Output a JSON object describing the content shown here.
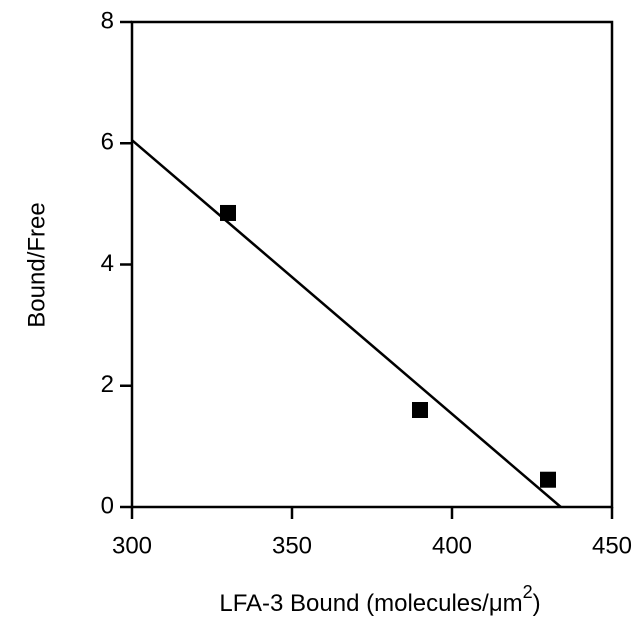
{
  "chart_data": {
    "type": "scatter",
    "x_label": "LFA-3 Bound (molecules/μm",
    "x_label_sup": "2",
    "x_label_end": ")",
    "y_label": "Bound/Free",
    "x": [
      330,
      390,
      430
    ],
    "values": [
      4.85,
      1.6,
      0.45
    ],
    "color": "#000000",
    "fit_line": {
      "x": [
        300,
        434
      ],
      "values": [
        6.05,
        0
      ]
    },
    "xlim": [
      300,
      450
    ],
    "xticks": [
      300,
      350,
      400,
      450
    ],
    "ylim": [
      0,
      8
    ],
    "yticks": [
      0,
      2,
      4,
      6,
      8
    ]
  }
}
